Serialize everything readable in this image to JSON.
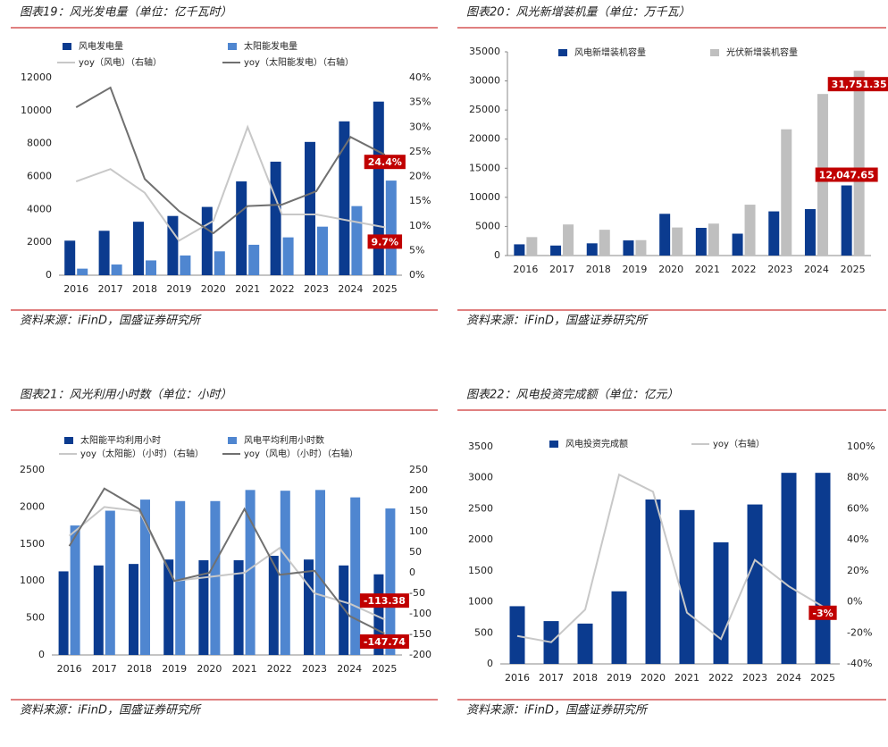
{
  "chart_data": [
    {
      "type": "combo",
      "title": "图表19：风光发电量（单位：亿千瓦时）",
      "source": "资料来源：iFinD，国盛证券研究所",
      "categories": [
        "2016",
        "2017",
        "2018",
        "2019",
        "2020",
        "2021",
        "2022",
        "2023",
        "2024",
        "2025"
      ],
      "ylim": [
        0,
        12000
      ],
      "yticks": [
        0,
        2000,
        4000,
        6000,
        8000,
        10000,
        12000
      ],
      "y2lim": [
        0,
        40
      ],
      "y2ticks": [
        {
          "value": 0,
          "label": "0%"
        },
        {
          "value": 5,
          "label": "5%"
        },
        {
          "value": 10,
          "label": "10%"
        },
        {
          "value": 15,
          "label": "15%"
        },
        {
          "value": 20,
          "label": "20%"
        },
        {
          "value": 25,
          "label": "25%"
        },
        {
          "value": 30,
          "label": "30%"
        },
        {
          "value": 35,
          "label": "35%"
        },
        {
          "value": 40,
          "label": "40%"
        }
      ],
      "grid": false,
      "series": [
        {
          "name": "风电发电量",
          "type": "bar",
          "color": "#0b3b8f",
          "values": [
            2100,
            2700,
            3250,
            3600,
            4150,
            5700,
            6900,
            8100,
            9350,
            10550
          ]
        },
        {
          "name": "太阳能发电量",
          "type": "bar",
          "color": "#4f86d0",
          "values": [
            400,
            650,
            900,
            1200,
            1450,
            1850,
            2300,
            2950,
            4200,
            5750
          ]
        },
        {
          "name": "yoy（风电）（右轴）",
          "type": "line",
          "axis": "y2",
          "color": "#c8c8c8",
          "values": [
            19,
            21.5,
            16.7,
            7,
            11,
            30,
            12.3,
            12.3,
            11,
            9.7
          ],
          "value_labels": [
            null,
            null,
            null,
            null,
            null,
            null,
            null,
            null,
            null,
            "9.7%"
          ]
        },
        {
          "name": "yoy（太阳能发电）（右轴）",
          "type": "line",
          "axis": "y2",
          "color": "#707070",
          "values": [
            34,
            38,
            19.5,
            13,
            8.5,
            14,
            14.3,
            17,
            28,
            24.4
          ],
          "value_labels": [
            null,
            null,
            null,
            null,
            null,
            null,
            null,
            null,
            null,
            "24.4%"
          ]
        }
      ]
    },
    {
      "type": "combo",
      "title": "图表20：风光新增装机量（单位：万千瓦）",
      "source": "资料来源：iFinD，国盛证券研究所",
      "categories": [
        "2016",
        "2017",
        "2018",
        "2019",
        "2020",
        "2021",
        "2022",
        "2023",
        "2024",
        "2025"
      ],
      "ylim": [
        0,
        35000
      ],
      "yticks": [
        0,
        5000,
        10000,
        15000,
        20000,
        25000,
        30000,
        35000
      ],
      "grid": false,
      "series": [
        {
          "name": "风电新增装机容量",
          "type": "bar",
          "color": "#0b3b8f",
          "values": [
            1930,
            1720,
            2100,
            2600,
            7170,
            4760,
            3760,
            7590,
            7980,
            12047.65
          ],
          "value_labels": [
            null,
            null,
            null,
            null,
            null,
            null,
            null,
            null,
            null,
            "12,047.65"
          ]
        },
        {
          "name": "光伏新增装机容量",
          "type": "bar",
          "color": "#bfbfbf",
          "values": [
            3170,
            5340,
            4430,
            2650,
            4820,
            5490,
            8740,
            21690,
            27760,
            31751.35
          ],
          "value_labels": [
            null,
            null,
            null,
            null,
            null,
            null,
            null,
            null,
            null,
            "31,751.35"
          ]
        }
      ]
    },
    {
      "type": "combo",
      "title": "图表21：风光利用小时数（单位：小时）",
      "source": "资料来源：iFinD，国盛证券研究所",
      "categories": [
        "2016",
        "2017",
        "2018",
        "2019",
        "2020",
        "2021",
        "2022",
        "2023",
        "2024",
        "2025"
      ],
      "ylim": [
        0,
        2500
      ],
      "yticks": [
        0,
        500,
        1000,
        1500,
        2000,
        2500
      ],
      "y2lim": [
        -200,
        250
      ],
      "y2ticks": [
        -200,
        -150,
        -100,
        -50,
        0,
        50,
        100,
        150,
        200,
        250
      ],
      "grid": false,
      "series": [
        {
          "name": "太阳能平均利用小时",
          "type": "bar",
          "color": "#0b3b8f",
          "values": [
            1130,
            1210,
            1230,
            1290,
            1280,
            1280,
            1340,
            1290,
            1210,
            1090
          ]
        },
        {
          "name": "风电平均利用小时数",
          "type": "bar",
          "color": "#4f86d0",
          "values": [
            1750,
            1950,
            2100,
            2080,
            2080,
            2230,
            2220,
            2230,
            2130,
            1980
          ]
        },
        {
          "name": "yoy（太阳能）（小时）（右轴）",
          "type": "line",
          "axis": "y2",
          "color": "#c8c8c8",
          "values": [
            90,
            160,
            150,
            -20,
            -10,
            0,
            60,
            -50,
            -75,
            -113.38
          ],
          "value_labels": [
            null,
            null,
            null,
            null,
            null,
            null,
            null,
            null,
            null,
            "-113.38"
          ]
        },
        {
          "name": "yoy（风电）（小时）（右轴）",
          "type": "line",
          "axis": "y2",
          "color": "#707070",
          "values": [
            65,
            205,
            155,
            -20,
            0,
            155,
            -5,
            5,
            -105,
            -147.74
          ],
          "value_labels": [
            null,
            null,
            null,
            null,
            null,
            null,
            null,
            null,
            null,
            "-147.74"
          ]
        }
      ]
    },
    {
      "type": "combo",
      "title": "图表22：风电投资完成额（单位：亿元）",
      "source": "资料来源：iFinD，国盛证券研究所",
      "categories": [
        "2016",
        "2017",
        "2018",
        "2019",
        "2020",
        "2021",
        "2022",
        "2023",
        "2024",
        "2025"
      ],
      "ylim": [
        0,
        3500
      ],
      "yticks": [
        0,
        500,
        1000,
        1500,
        2000,
        2500,
        3000,
        3500
      ],
      "y2lim": [
        -40,
        100
      ],
      "y2ticks": [
        {
          "value": -40,
          "label": "-40%"
        },
        {
          "value": -20,
          "label": "-20%"
        },
        {
          "value": 0,
          "label": "0%"
        },
        {
          "value": 20,
          "label": "20%"
        },
        {
          "value": 40,
          "label": "40%"
        },
        {
          "value": 60,
          "label": "60%"
        },
        {
          "value": 80,
          "label": "80%"
        },
        {
          "value": 100,
          "label": "100%"
        }
      ],
      "grid": false,
      "series": [
        {
          "name": "风电投资完成额",
          "type": "bar",
          "color": "#0b3b8f",
          "values": [
            930,
            690,
            650,
            1170,
            2650,
            2480,
            1960,
            2570,
            3080,
            3080
          ]
        },
        {
          "name": "yoy（右轴）",
          "type": "line",
          "axis": "y2",
          "color": "#c8c8c8",
          "values": [
            -22,
            -26,
            -5,
            82,
            71,
            -7,
            -24,
            27,
            10,
            -3
          ],
          "value_labels": [
            null,
            null,
            null,
            null,
            null,
            null,
            null,
            null,
            null,
            "-3%"
          ]
        }
      ]
    }
  ]
}
